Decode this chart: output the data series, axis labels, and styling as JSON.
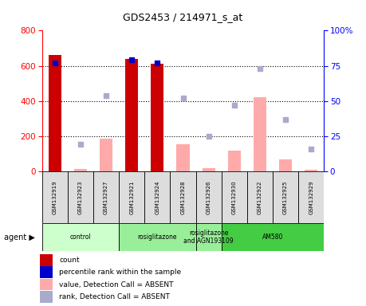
{
  "title": "GDS2453 / 214971_s_at",
  "samples": [
    "GSM132919",
    "GSM132923",
    "GSM132927",
    "GSM132921",
    "GSM132924",
    "GSM132928",
    "GSM132926",
    "GSM132930",
    "GSM132922",
    "GSM132925",
    "GSM132929"
  ],
  "count_present": [
    660,
    0,
    0,
    640,
    610,
    0,
    0,
    0,
    0,
    0,
    0
  ],
  "count_absent_value": [
    0,
    15,
    185,
    0,
    0,
    155,
    20,
    120,
    420,
    70,
    10
  ],
  "rank_present": [
    77,
    0,
    0,
    79,
    77,
    0,
    0,
    0,
    0,
    0,
    0
  ],
  "rank_absent": [
    0,
    19,
    54,
    0,
    0,
    52,
    25,
    47,
    73,
    37,
    16
  ],
  "ylim_left": [
    0,
    800
  ],
  "ylim_right": [
    0,
    100
  ],
  "yticks_left": [
    0,
    200,
    400,
    600,
    800
  ],
  "yticks_right": [
    0,
    25,
    50,
    75,
    100
  ],
  "groups": [
    {
      "label": "control",
      "start": 0,
      "end": 3,
      "color": "#ccffcc"
    },
    {
      "label": "rosiglitazone",
      "start": 3,
      "end": 6,
      "color": "#99ee99"
    },
    {
      "label": "rosiglitazone\nand AGN193109",
      "start": 6,
      "end": 7,
      "color": "#99ee99"
    },
    {
      "label": "AM580",
      "start": 7,
      "end": 11,
      "color": "#44cc44"
    }
  ],
  "bar_color_present": "#cc0000",
  "bar_color_absent_value": "#ffaaaa",
  "dot_color_present": "#0000cc",
  "dot_color_absent_rank": "#aaaacc",
  "legend_items": [
    {
      "label": "count",
      "color": "#cc0000"
    },
    {
      "label": "percentile rank within the sample",
      "color": "#0000cc"
    },
    {
      "label": "value, Detection Call = ABSENT",
      "color": "#ffaaaa"
    },
    {
      "label": "rank, Detection Call = ABSENT",
      "color": "#aaaacc"
    }
  ],
  "gridline_y": [
    200,
    400,
    600
  ],
  "sample_box_color": "#dddddd",
  "background_color": "#ffffff"
}
